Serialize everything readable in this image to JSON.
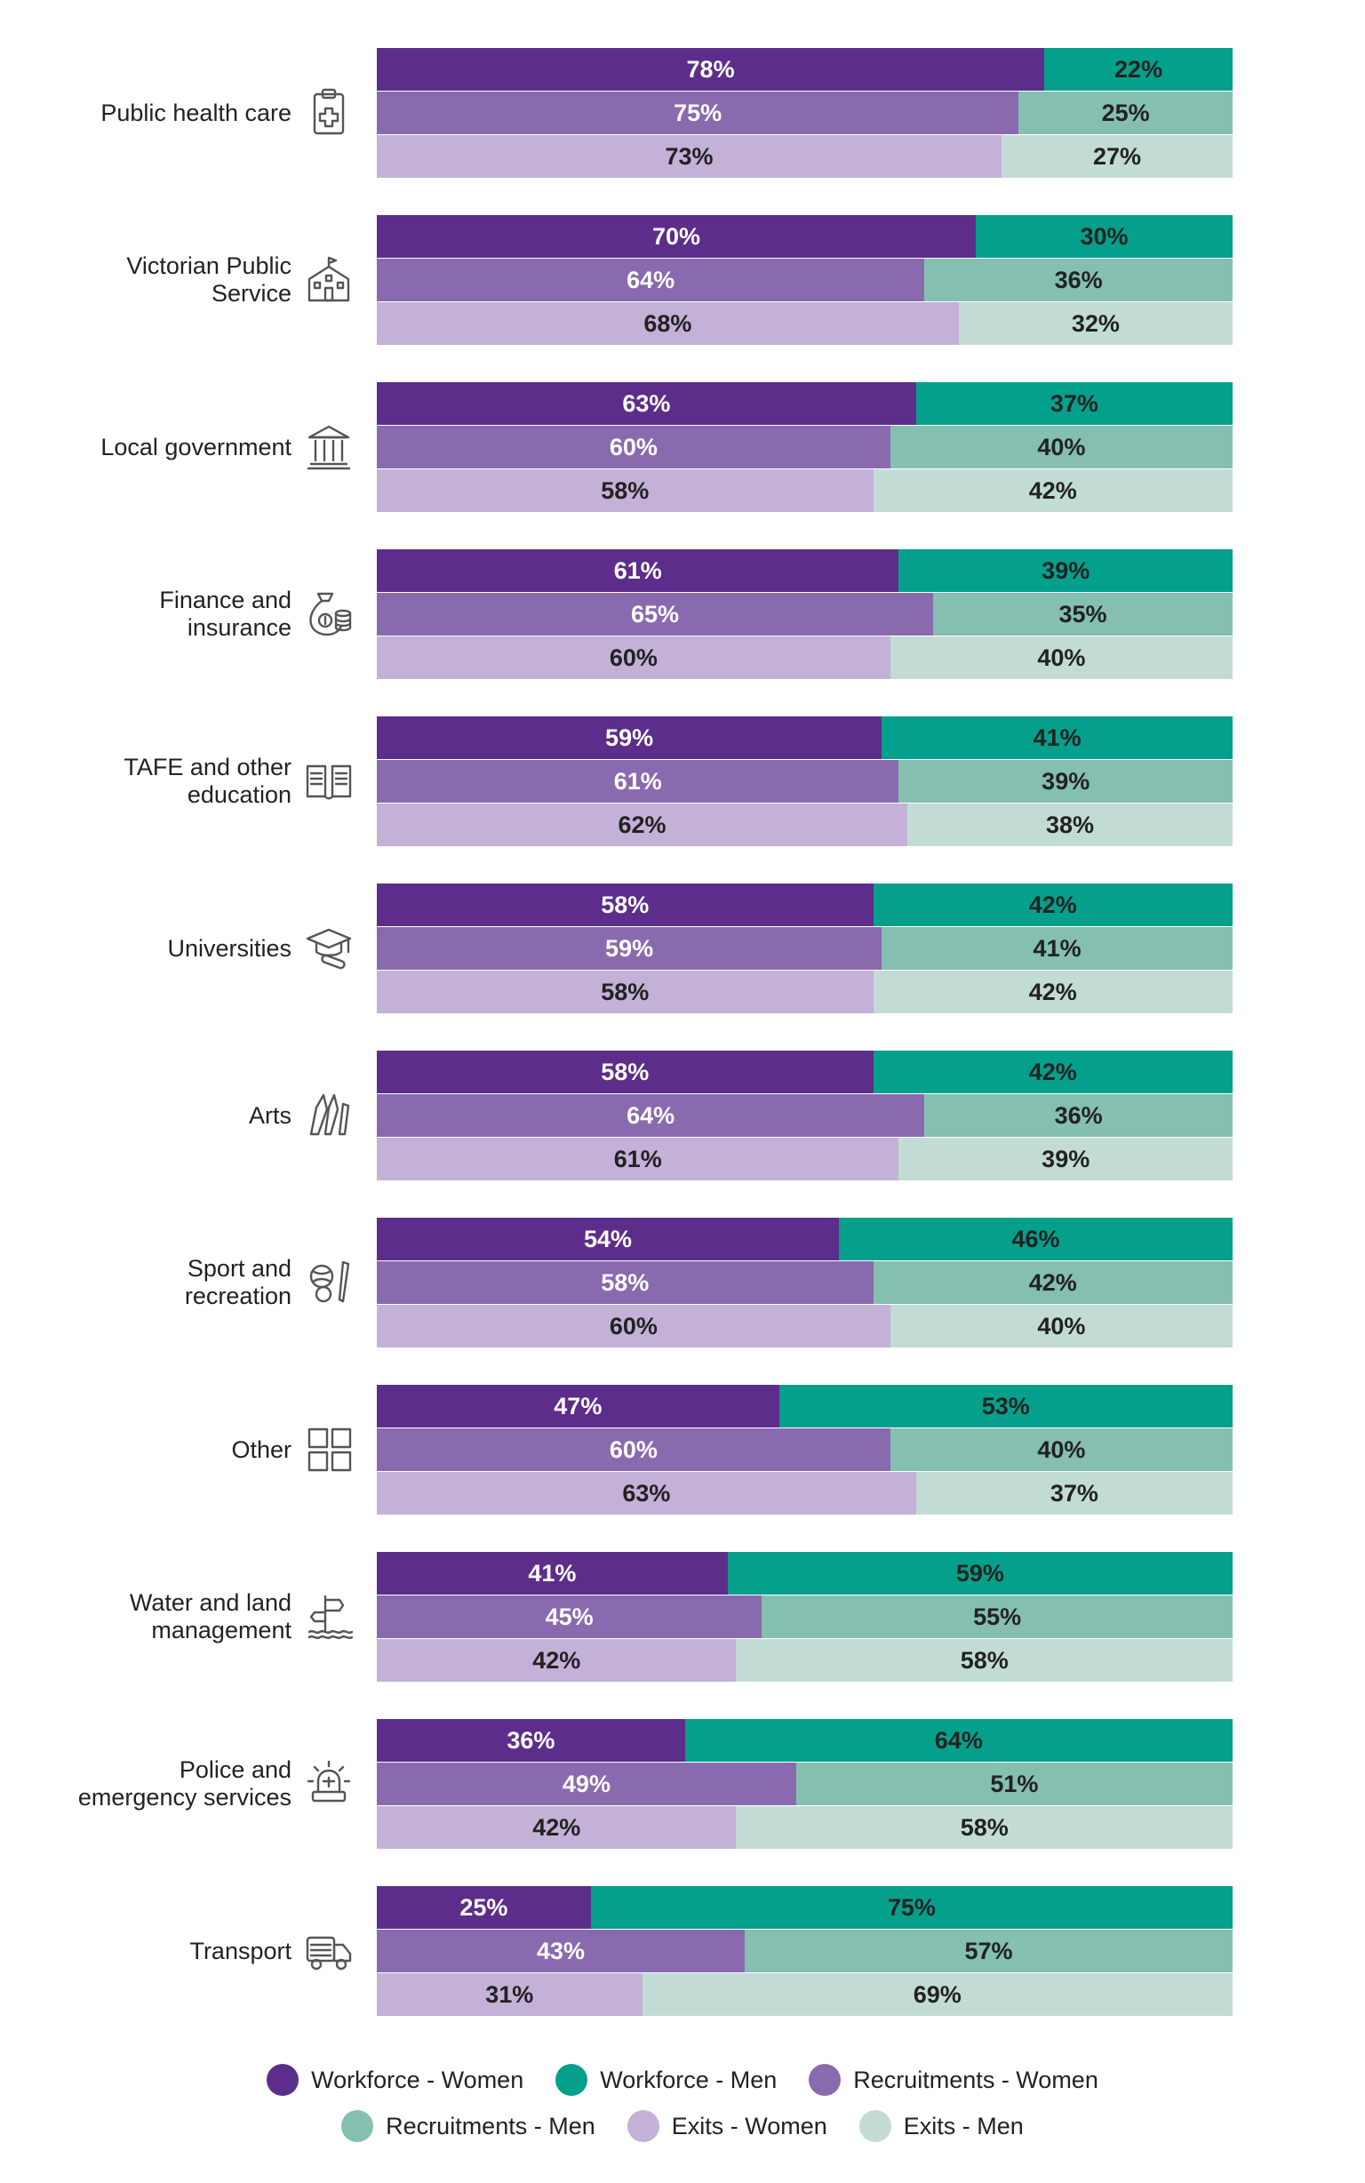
{
  "chart_data": {
    "type": "bar",
    "orientation": "horizontal",
    "stacked": "percent",
    "xlim": [
      0,
      100
    ],
    "categories": [
      "Public health care",
      "Victorian Public\nService",
      "Local government",
      "Finance and\ninsurance",
      "TAFE and other\neducation",
      "Universities",
      "Arts",
      "Sport and\nrecreation",
      "Other",
      "Water and land\nmanagement",
      "Police and\nemergency services",
      "Transport"
    ],
    "icons": [
      "clipboard-cross-icon",
      "school-building-icon",
      "columns-building-icon",
      "money-bag-coins-icon",
      "open-book-icon",
      "graduation-cap-icon",
      "pencils-icon",
      "sports-balls-icon",
      "grid-squares-icon",
      "signpost-water-icon",
      "emergency-light-icon",
      "truck-icon"
    ],
    "series": [
      {
        "name": "Workforce - Women",
        "group": "Workforce",
        "side": "women",
        "color": "#5c2d8a",
        "values": [
          78,
          70,
          63,
          61,
          59,
          58,
          58,
          54,
          47,
          41,
          36,
          25
        ]
      },
      {
        "name": "Workforce - Men",
        "group": "Workforce",
        "side": "men",
        "color": "#04a08b",
        "values": [
          22,
          30,
          37,
          39,
          41,
          42,
          42,
          46,
          53,
          59,
          64,
          75
        ]
      },
      {
        "name": "Recruitments - Women",
        "group": "Recruitments",
        "side": "women",
        "color": "#8a6aaf",
        "values": [
          75,
          64,
          60,
          65,
          61,
          59,
          64,
          58,
          60,
          45,
          49,
          43
        ]
      },
      {
        "name": "Recruitments - Men",
        "group": "Recruitments",
        "side": "men",
        "color": "#84bfb0",
        "values": [
          25,
          36,
          40,
          35,
          39,
          41,
          36,
          42,
          40,
          55,
          51,
          57
        ]
      },
      {
        "name": "Exits - Women",
        "group": "Exits",
        "side": "women",
        "color": "#c3b1d8",
        "values": [
          73,
          68,
          58,
          60,
          62,
          58,
          61,
          60,
          63,
          42,
          42,
          31
        ]
      },
      {
        "name": "Exits - Men",
        "group": "Exits",
        "side": "men",
        "color": "#c2dcd5",
        "values": [
          27,
          32,
          42,
          40,
          38,
          42,
          39,
          40,
          37,
          58,
          58,
          69
        ]
      }
    ],
    "value_suffix": "%",
    "legend": {
      "placement": "bottom-center"
    }
  },
  "colors": {
    "label_light": "#ffffff",
    "label_dark": "#222222",
    "icon_stroke": "#555555"
  }
}
